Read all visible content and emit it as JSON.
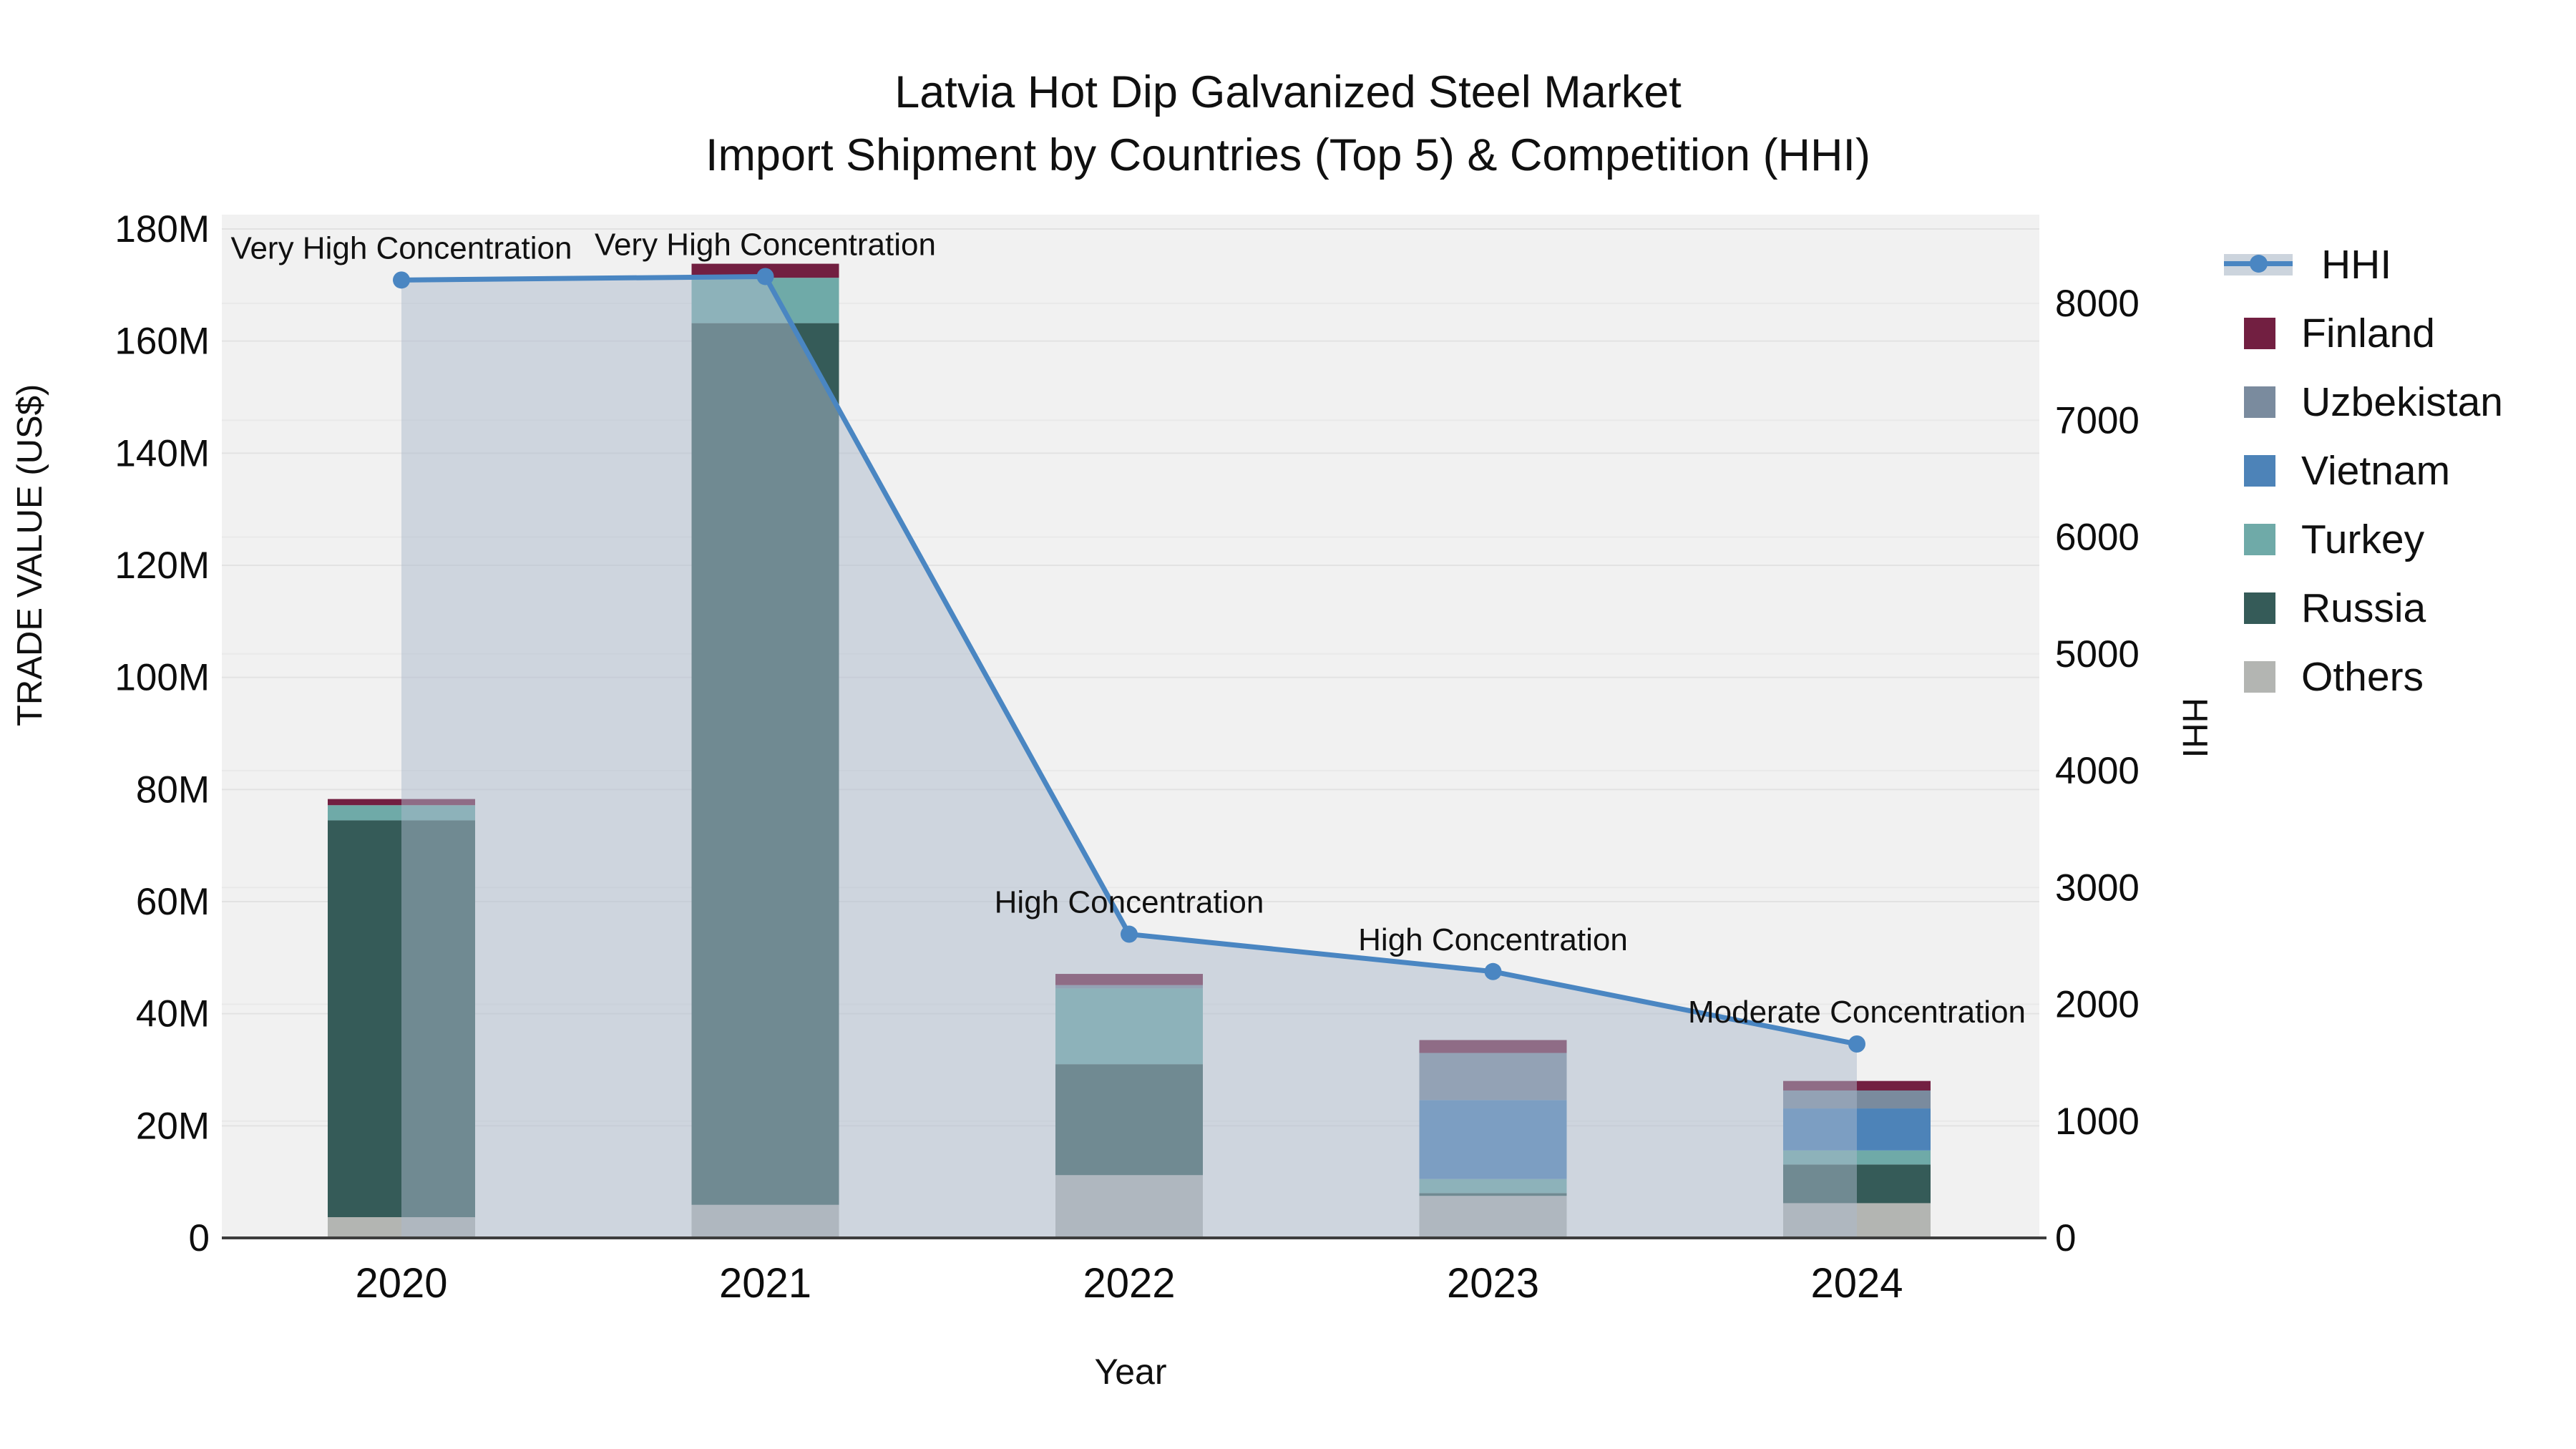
{
  "title": {
    "line1": "Latvia Hot Dip Galvanized Steel Market",
    "line2": "Import Shipment by Countries (Top 5) & Competition (HHI)"
  },
  "axes": {
    "y_left_label": "TRADE VALUE (US$)",
    "y_right_label": "HHI",
    "x_label": "Year"
  },
  "legend": {
    "items": [
      {
        "label": "HHI",
        "type": "line",
        "color": "#4a86c2"
      },
      {
        "label": "Finland",
        "type": "swatch",
        "color": "#721f41"
      },
      {
        "label": "Uzbekistan",
        "type": "swatch",
        "color": "#7a8b9e"
      },
      {
        "label": "Vietnam",
        "type": "swatch",
        "color": "#4d83b8"
      },
      {
        "label": "Turkey",
        "type": "swatch",
        "color": "#6faaa8"
      },
      {
        "label": "Russia",
        "type": "swatch",
        "color": "#355b58"
      },
      {
        "label": "Others",
        "type": "swatch",
        "color": "#b3b5b2"
      }
    ]
  },
  "chart_data": {
    "type": "combo-stacked-bar-with-line",
    "categories": [
      "2020",
      "2021",
      "2022",
      "2023",
      "2024"
    ],
    "series": [
      {
        "name": "Others",
        "color": "#b3b5b2",
        "values": [
          3.7,
          5.9,
          11.2,
          7.5,
          6.2
        ]
      },
      {
        "name": "Russia",
        "color": "#355b58",
        "values": [
          70.8,
          157.3,
          19.8,
          0.5,
          6.9
        ]
      },
      {
        "name": "Turkey",
        "color": "#6faaa8",
        "values": [
          2.7,
          8.1,
          13.5,
          2.5,
          2.5
        ]
      },
      {
        "name": "Vietnam",
        "color": "#4d83b8",
        "values": [
          0,
          0,
          0,
          14.1,
          7.5
        ]
      },
      {
        "name": "Uzbekistan",
        "color": "#7a8b9e",
        "values": [
          0,
          0,
          0.6,
          8.4,
          3.2
        ]
      },
      {
        "name": "Finland",
        "color": "#721f41",
        "values": [
          1.1,
          2.5,
          2.0,
          2.3,
          1.7
        ]
      }
    ],
    "stack_totals_M": [
      78.3,
      173.8,
      47.1,
      35.3,
      28.0
    ],
    "line_series": {
      "name": "HHI",
      "color": "#4a86c2",
      "area_fill": "rgba(172,186,203,0.5)",
      "values": [
        8200,
        8230,
        2600,
        2280,
        1660
      ]
    },
    "annotations": [
      {
        "x": "2020",
        "text": "Very High Concentration"
      },
      {
        "x": "2021",
        "text": "Very High Concentration"
      },
      {
        "x": "2022",
        "text": "High Concentration"
      },
      {
        "x": "2023",
        "text": "High Concentration"
      },
      {
        "x": "2024",
        "text": "Moderate Concentration"
      }
    ],
    "axis_left": {
      "label": "TRADE VALUE (US$)",
      "unit": "millions US$",
      "ticks": [
        "0",
        "20M",
        "40M",
        "60M",
        "80M",
        "100M",
        "120M",
        "140M",
        "160M",
        "180M"
      ],
      "tick_values": [
        0,
        20,
        40,
        60,
        80,
        100,
        120,
        140,
        160,
        180
      ],
      "range": [
        0,
        182.6
      ]
    },
    "axis_right": {
      "label": "HHI",
      "ticks": [
        "0",
        "1000",
        "2000",
        "3000",
        "4000",
        "5000",
        "6000",
        "7000",
        "8000"
      ],
      "tick_values": [
        0,
        1000,
        2000,
        3000,
        4000,
        5000,
        6000,
        7000,
        8000
      ],
      "range": [
        0,
        8760
      ]
    },
    "axis_x": {
      "label": "Year"
    },
    "grid": true,
    "legend_position": "right",
    "plot_background": "#f1f1f1"
  }
}
